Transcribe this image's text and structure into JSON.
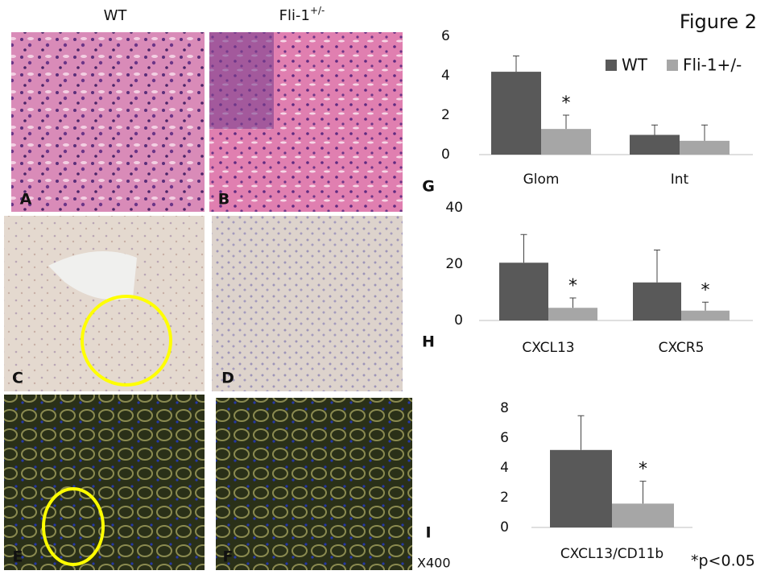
{
  "figure_title": "Figure 2",
  "column_labels": [
    {
      "text": "WT"
    },
    {
      "text": "Fli-1",
      "superscript": "+/-"
    }
  ],
  "panel_labels": [
    "A",
    "B",
    "C",
    "D",
    "E",
    "F",
    "G",
    "H",
    "I"
  ],
  "magnification": "X400",
  "footnote": "*p<0.05",
  "chart_data": [
    {
      "type": "bar",
      "categories": [
        "Glom",
        "Int"
      ],
      "ylim": [
        0,
        6
      ],
      "yticks": [
        0,
        2,
        4,
        6
      ],
      "grid": false,
      "legend": "upper right",
      "series": [
        {
          "name": "WT",
          "color": "#595959",
          "values": [
            4.2,
            1.0
          ],
          "errors": [
            0.8,
            0.5
          ],
          "significance": [
            null,
            null
          ]
        },
        {
          "name": "Fli-1+/-",
          "color": "#a6a6a6",
          "values": [
            1.3,
            0.7
          ],
          "errors": [
            0.7,
            0.8
          ],
          "significance": [
            "*",
            null
          ]
        }
      ]
    },
    {
      "type": "bar",
      "categories": [
        "CXCL13",
        "CXCR5"
      ],
      "ylim": [
        0,
        40
      ],
      "yticks": [
        0,
        20,
        40
      ],
      "grid": false,
      "series": [
        {
          "color": "#595959",
          "values": [
            20.5,
            13.5
          ],
          "errors": [
            10,
            11.5
          ],
          "significance": [
            null,
            null
          ]
        },
        {
          "color": "#a6a6a6",
          "values": [
            4.5,
            3.5
          ],
          "errors": [
            3.5,
            3
          ],
          "significance": [
            "*",
            "*"
          ]
        }
      ]
    },
    {
      "type": "bar",
      "categories": [
        "CXCL13/CD11b"
      ],
      "ylim": [
        0,
        8
      ],
      "yticks": [
        0,
        2,
        4,
        6,
        8
      ],
      "grid": false,
      "series": [
        {
          "color": "#595959",
          "values": [
            5.2
          ],
          "errors": [
            2.3
          ],
          "significance": [
            null
          ]
        },
        {
          "color": "#a6a6a6",
          "values": [
            1.6
          ],
          "errors": [
            1.5
          ],
          "significance": [
            "*"
          ]
        }
      ]
    }
  ]
}
